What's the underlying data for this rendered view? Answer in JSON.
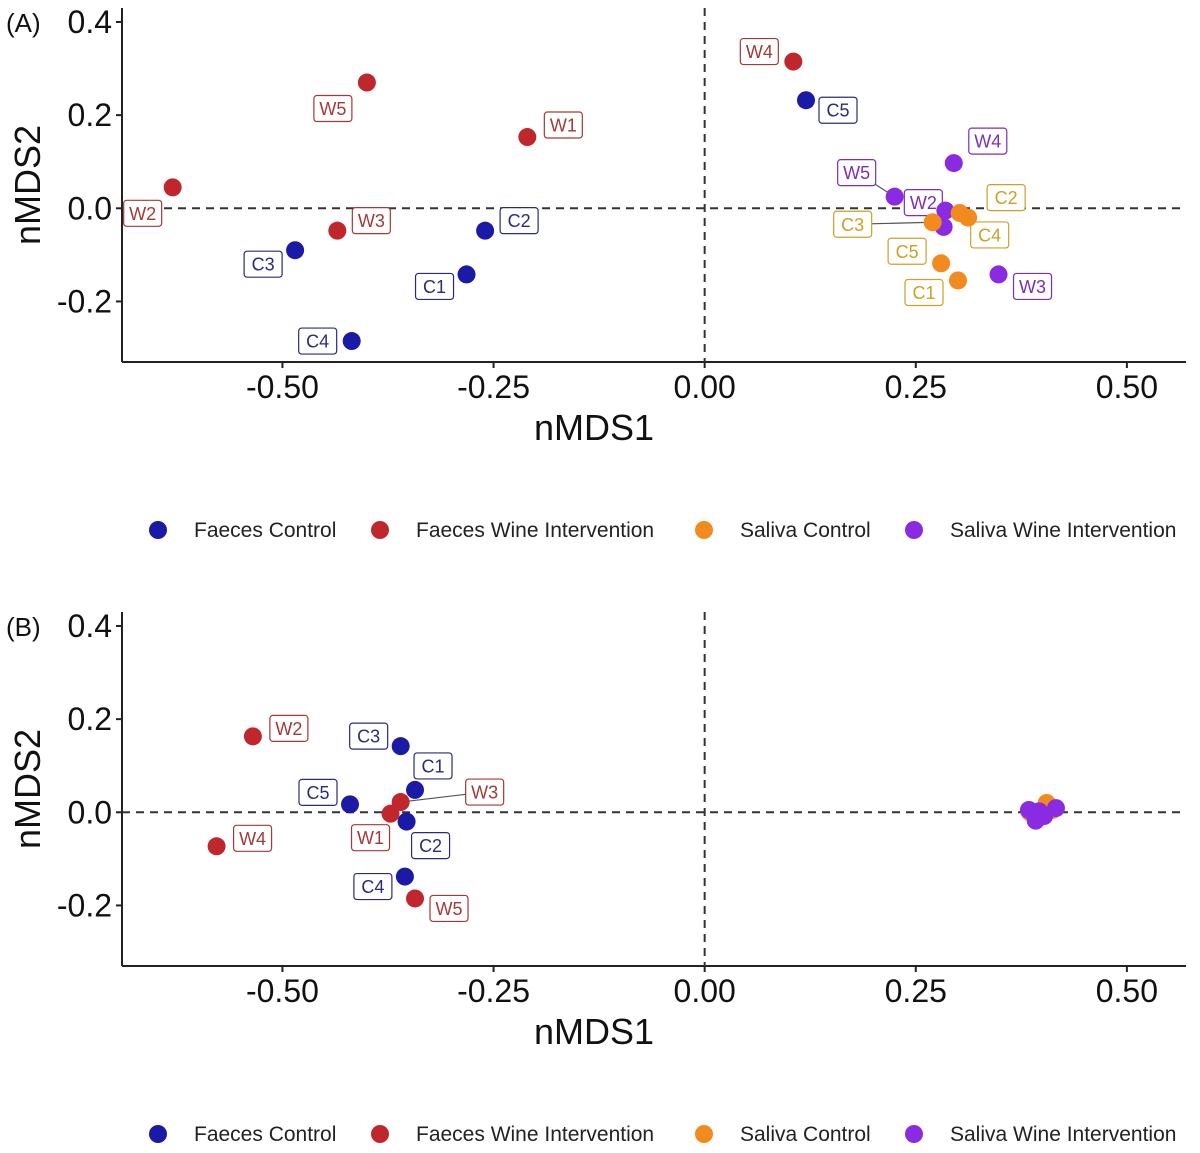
{
  "colors": {
    "faeces_control": "#1a1aa6",
    "faeces_wine": "#c0272d",
    "saliva_control": "#f28a1e",
    "saliva_wine": "#8a2be2",
    "label_faeces_control": "#2b2b7a",
    "label_faeces_wine": "#a23a3a",
    "label_saliva_control": "#c9a227",
    "label_saliva_wine": "#7a2fb8"
  },
  "legend": [
    {
      "group": "faeces_control",
      "label": "Faeces Control"
    },
    {
      "group": "faeces_wine",
      "label": "Faeces Wine Intervention"
    },
    {
      "group": "saliva_control",
      "label": "Saliva Control"
    },
    {
      "group": "saliva_wine",
      "label": "Saliva Wine Intervention"
    }
  ],
  "chart_data": [
    {
      "panel": "(A)",
      "type": "scatter",
      "xlabel": "nMDS1",
      "ylabel": "nMDS2",
      "xlim": [
        -0.69,
        0.57
      ],
      "ylim": [
        -0.33,
        0.43
      ],
      "xticks": [
        -0.5,
        -0.25,
        0.0,
        0.25,
        0.5
      ],
      "xtick_labels": [
        "-0.50",
        "-0.25",
        "0.00",
        "0.25",
        "0.50"
      ],
      "yticks": [
        -0.2,
        0.0,
        0.2,
        0.4
      ],
      "ytick_labels": [
        "-0.2",
        "0.0",
        "0.2",
        "0.4"
      ],
      "points": [
        {
          "group": "faeces_wine",
          "label": "W2",
          "x": -0.63,
          "y": 0.045
        },
        {
          "group": "faeces_wine",
          "label": "W5",
          "x": -0.4,
          "y": 0.27
        },
        {
          "group": "faeces_wine",
          "label": "W1",
          "x": -0.21,
          "y": 0.153
        },
        {
          "group": "faeces_wine",
          "label": "W3",
          "x": -0.435,
          "y": -0.048
        },
        {
          "group": "faeces_wine",
          "label": "W4",
          "x": 0.105,
          "y": 0.315
        },
        {
          "group": "faeces_control",
          "label": "C3",
          "x": -0.485,
          "y": -0.09
        },
        {
          "group": "faeces_control",
          "label": "C2",
          "x": -0.26,
          "y": -0.048
        },
        {
          "group": "faeces_control",
          "label": "C1",
          "x": -0.282,
          "y": -0.142
        },
        {
          "group": "faeces_control",
          "label": "C4",
          "x": -0.418,
          "y": -0.285
        },
        {
          "group": "faeces_control",
          "label": "C5",
          "x": 0.12,
          "y": 0.232
        },
        {
          "group": "saliva_wine",
          "label": "W4",
          "x": 0.295,
          "y": 0.097
        },
        {
          "group": "saliva_wine",
          "label": "W5",
          "x": 0.225,
          "y": 0.025
        },
        {
          "group": "saliva_wine",
          "label": "W2",
          "x": 0.285,
          "y": -0.005
        },
        {
          "group": "saliva_wine",
          "label": "W3",
          "x": 0.348,
          "y": -0.142
        },
        {
          "group": "saliva_wine",
          "label": "",
          "x": 0.283,
          "y": -0.04
        },
        {
          "group": "saliva_control",
          "label": "C2",
          "x": 0.312,
          "y": -0.02
        },
        {
          "group": "saliva_control",
          "label": "C3",
          "x": 0.27,
          "y": -0.03
        },
        {
          "group": "saliva_control",
          "label": "C4",
          "x": 0.302,
          "y": -0.01
        },
        {
          "group": "saliva_control",
          "label": "C5",
          "x": 0.28,
          "y": -0.118
        },
        {
          "group": "saliva_control",
          "label": "C1",
          "x": 0.3,
          "y": -0.155
        }
      ]
    },
    {
      "panel": "(B)",
      "type": "scatter",
      "xlabel": "nMDS1",
      "ylabel": "nMDS2",
      "xlim": [
        -0.69,
        0.57
      ],
      "ylim": [
        -0.33,
        0.43
      ],
      "xticks": [
        -0.5,
        -0.25,
        0.0,
        0.25,
        0.5
      ],
      "xtick_labels": [
        "-0.50",
        "-0.25",
        "0.00",
        "0.25",
        "0.50"
      ],
      "yticks": [
        -0.2,
        0.0,
        0.2,
        0.4
      ],
      "ytick_labels": [
        "-0.2",
        "0.0",
        "0.2",
        "0.4"
      ],
      "points": [
        {
          "group": "faeces_wine",
          "label": "W2",
          "x": -0.535,
          "y": 0.163
        },
        {
          "group": "faeces_wine",
          "label": "W4",
          "x": -0.578,
          "y": -0.073
        },
        {
          "group": "faeces_wine",
          "label": "W1",
          "x": -0.372,
          "y": -0.003
        },
        {
          "group": "faeces_wine",
          "label": "W3",
          "x": -0.36,
          "y": 0.022
        },
        {
          "group": "faeces_wine",
          "label": "W5",
          "x": -0.343,
          "y": -0.185
        },
        {
          "group": "faeces_control",
          "label": "C3",
          "x": -0.36,
          "y": 0.142
        },
        {
          "group": "faeces_control",
          "label": "C1",
          "x": -0.343,
          "y": 0.048
        },
        {
          "group": "faeces_control",
          "label": "C5",
          "x": -0.42,
          "y": 0.017
        },
        {
          "group": "faeces_control",
          "label": "C2",
          "x": -0.353,
          "y": -0.02
        },
        {
          "group": "faeces_control",
          "label": "C4",
          "x": -0.355,
          "y": -0.138
        },
        {
          "group": "saliva_control",
          "label": "",
          "x": 0.405,
          "y": 0.02
        },
        {
          "group": "saliva_control",
          "label": "",
          "x": 0.398,
          "y": -0.005
        },
        {
          "group": "saliva_control",
          "label": "",
          "x": 0.392,
          "y": -0.012
        },
        {
          "group": "saliva_control",
          "label": "",
          "x": 0.412,
          "y": 0.005
        },
        {
          "group": "saliva_control",
          "label": "",
          "x": 0.385,
          "y": 0.0
        },
        {
          "group": "saliva_wine",
          "label": "",
          "x": 0.384,
          "y": 0.005
        },
        {
          "group": "saliva_wine",
          "label": "",
          "x": 0.392,
          "y": -0.018
        },
        {
          "group": "saliva_wine",
          "label": "",
          "x": 0.402,
          "y": -0.008
        },
        {
          "group": "saliva_wine",
          "label": "",
          "x": 0.416,
          "y": 0.009
        },
        {
          "group": "saliva_wine",
          "label": "",
          "x": 0.396,
          "y": 0.002
        }
      ]
    }
  ]
}
